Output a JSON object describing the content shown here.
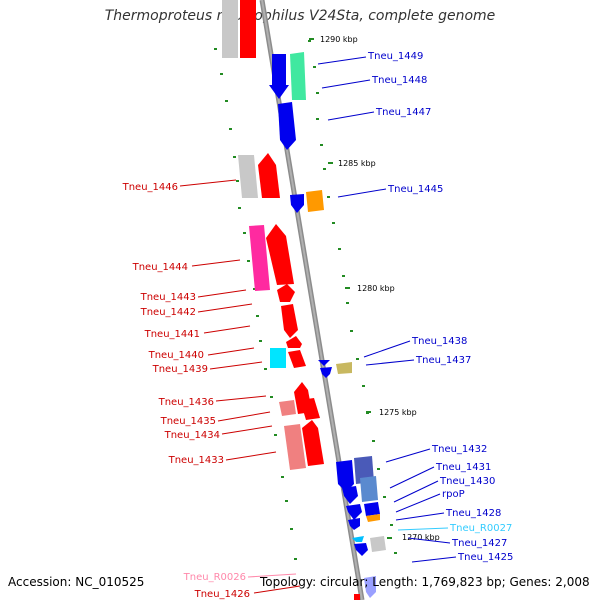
{
  "title": "Thermoproteus neutrophilus V24Sta, complete genome",
  "accession": "Accession: NC_010525",
  "info": "Topology: circular; Length: 1,769,823 bp; Genes: 2,008",
  "colors": {
    "backbone": "#8c8c8c",
    "red": "#ff0000",
    "blue": "#0000ee",
    "gray": "#c8c8c8",
    "magenta": "#ff2aa0",
    "mint": "#40e8a0",
    "cyan": "#00e5ff",
    "orange": "#ff9900",
    "khaki": "#c8b860",
    "salmon": "#f08080",
    "slate": "#4a5ab8",
    "tick_mark": "#228b22",
    "label_red": "#cc0000",
    "label_blue": "#0000cc",
    "label_cyan": "#33ccff",
    "label_pink": "#ff88aa"
  },
  "ticks": [
    "1290 kbp",
    "1285 kbp",
    "1280 kbp",
    "1275 kbp",
    "1270 kbp"
  ],
  "labels": {
    "t1449": "Tneu_1449",
    "t1448": "Tneu_1448",
    "t1447": "Tneu_1447",
    "t1446": "Tneu_1446",
    "t1445": "Tneu_1445",
    "t1444": "Tneu_1444",
    "t1443": "Tneu_1443",
    "t1442": "Tneu_1442",
    "t1441": "Tneu_1441",
    "t1440": "Tneu_1440",
    "t1439": "Tneu_1439",
    "t1438": "Tneu_1438",
    "t1437": "Tneu_1437",
    "t1436": "Tneu_1436",
    "t1435": "Tneu_1435",
    "t1434": "Tneu_1434",
    "t1433": "Tneu_1433",
    "t1432": "Tneu_1432",
    "t1431": "Tneu_1431",
    "t1430": "Tneu_1430",
    "rpoP": "rpoP",
    "t1428": "Tneu_1428",
    "tR0027": "Tneu_R0027",
    "t1427": "Tneu_1427",
    "t1425": "Tneu_1425",
    "tR0026": "Tneu_R0026",
    "t1426": "Tneu_1426"
  }
}
